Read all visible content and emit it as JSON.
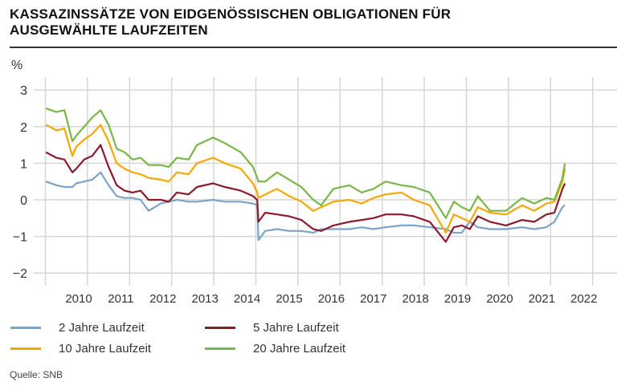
{
  "title_lines": [
    "KASSAZINSSÄTZE VON EIDGENÖSSISCHEN OBLIGATIONEN FÜR",
    "AUSGEWÄHLTE LAUFZEITEN"
  ],
  "source": "Quelle: SNB",
  "chart_data": {
    "type": "line",
    "title": "KASSAZINSSÄTZE VON EIDGENÖSSISCHEN OBLIGATIONEN FÜR AUSGEWÄHLTE LAUFZEITEN",
    "ylabel": "%",
    "xlabel": "",
    "ylim": [
      -2.3,
      3.3
    ],
    "yticks": [
      3,
      2,
      1,
      0,
      -1,
      -2
    ],
    "ytick_labels": [
      "3",
      "2",
      "1",
      "0",
      "−1",
      "−2"
    ],
    "xticks": [
      "2010",
      "2011",
      "2012",
      "2013",
      "2014",
      "2015",
      "2016",
      "2017",
      "2018",
      "2019",
      "2020",
      "2021",
      "2022"
    ],
    "grid": true,
    "legend_placement": "bottom",
    "x": [
      2009.22,
      2009.47,
      2009.66,
      2009.85,
      2009.94,
      2010.13,
      2010.32,
      2010.52,
      2010.71,
      2010.9,
      2011.09,
      2011.28,
      2011.47,
      2011.66,
      2011.95,
      2012.14,
      2012.33,
      2012.61,
      2012.81,
      2013.19,
      2013.47,
      2013.85,
      2014.14,
      2014.24,
      2014.27,
      2014.43,
      2014.71,
      2015.0,
      2015.29,
      2015.57,
      2015.76,
      2016.05,
      2016.43,
      2016.72,
      2017.0,
      2017.29,
      2017.67,
      2017.96,
      2018.34,
      2018.72,
      2018.91,
      2019.1,
      2019.29,
      2019.48,
      2019.77,
      2020.15,
      2020.53,
      2020.82,
      2021.11,
      2021.3,
      2021.49,
      2021.55
    ],
    "series": [
      {
        "name": "2 Jahre Laufzeit",
        "color": "#7fa3c6",
        "values": [
          0.5,
          0.4,
          0.35,
          0.35,
          0.45,
          0.5,
          0.55,
          0.75,
          0.4,
          0.1,
          0.05,
          0.05,
          0.0,
          -0.3,
          -0.1,
          -0.05,
          0.0,
          -0.05,
          -0.05,
          0.0,
          -0.05,
          -0.05,
          -0.1,
          -0.15,
          -1.1,
          -0.85,
          -0.8,
          -0.85,
          -0.85,
          -0.9,
          -0.8,
          -0.8,
          -0.8,
          -0.75,
          -0.8,
          -0.75,
          -0.7,
          -0.7,
          -0.75,
          -0.8,
          -0.9,
          -0.9,
          -0.6,
          -0.75,
          -0.8,
          -0.8,
          -0.75,
          -0.8,
          -0.75,
          -0.6,
          -0.2,
          -0.15
        ]
      },
      {
        "name": "5 Jahre Laufzeit",
        "color": "#8b1a2b",
        "values": [
          1.3,
          1.15,
          1.1,
          0.75,
          0.85,
          1.1,
          1.2,
          1.5,
          0.9,
          0.4,
          0.25,
          0.2,
          0.25,
          0.0,
          0.0,
          -0.05,
          0.2,
          0.15,
          0.35,
          0.45,
          0.35,
          0.25,
          0.1,
          0.0,
          -0.6,
          -0.35,
          -0.4,
          -0.45,
          -0.55,
          -0.8,
          -0.85,
          -0.7,
          -0.6,
          -0.55,
          -0.5,
          -0.4,
          -0.4,
          -0.45,
          -0.6,
          -1.15,
          -0.75,
          -0.7,
          -0.8,
          -0.45,
          -0.6,
          -0.7,
          -0.55,
          -0.6,
          -0.4,
          -0.35,
          0.3,
          0.45
        ]
      },
      {
        "name": "10 Jahre Laufzeit",
        "color": "#f5a800",
        "values": [
          2.05,
          1.9,
          1.95,
          1.2,
          1.45,
          1.65,
          1.8,
          2.05,
          1.6,
          1.0,
          0.85,
          0.75,
          0.7,
          0.6,
          0.55,
          0.5,
          0.75,
          0.7,
          1.0,
          1.15,
          1.0,
          0.85,
          0.45,
          0.2,
          0.05,
          0.15,
          0.3,
          0.1,
          -0.05,
          -0.3,
          -0.2,
          -0.05,
          0.0,
          -0.1,
          0.05,
          0.15,
          0.2,
          0.0,
          -0.15,
          -0.9,
          -0.4,
          -0.5,
          -0.6,
          -0.2,
          -0.35,
          -0.4,
          -0.15,
          -0.3,
          -0.1,
          -0.05,
          0.5,
          0.85
        ]
      },
      {
        "name": "20 Jahre Laufzeit",
        "color": "#7ab648",
        "values": [
          2.5,
          2.4,
          2.45,
          1.6,
          1.75,
          2.0,
          2.25,
          2.45,
          2.05,
          1.4,
          1.3,
          1.1,
          1.15,
          0.95,
          0.95,
          0.9,
          1.15,
          1.1,
          1.5,
          1.7,
          1.55,
          1.3,
          0.9,
          0.6,
          0.5,
          0.5,
          0.75,
          0.55,
          0.35,
          0.0,
          -0.15,
          0.3,
          0.4,
          0.2,
          0.3,
          0.5,
          0.4,
          0.35,
          0.2,
          -0.5,
          -0.05,
          -0.2,
          -0.3,
          0.1,
          -0.3,
          -0.3,
          0.05,
          -0.1,
          0.05,
          0.0,
          0.6,
          1.0
        ]
      }
    ]
  }
}
